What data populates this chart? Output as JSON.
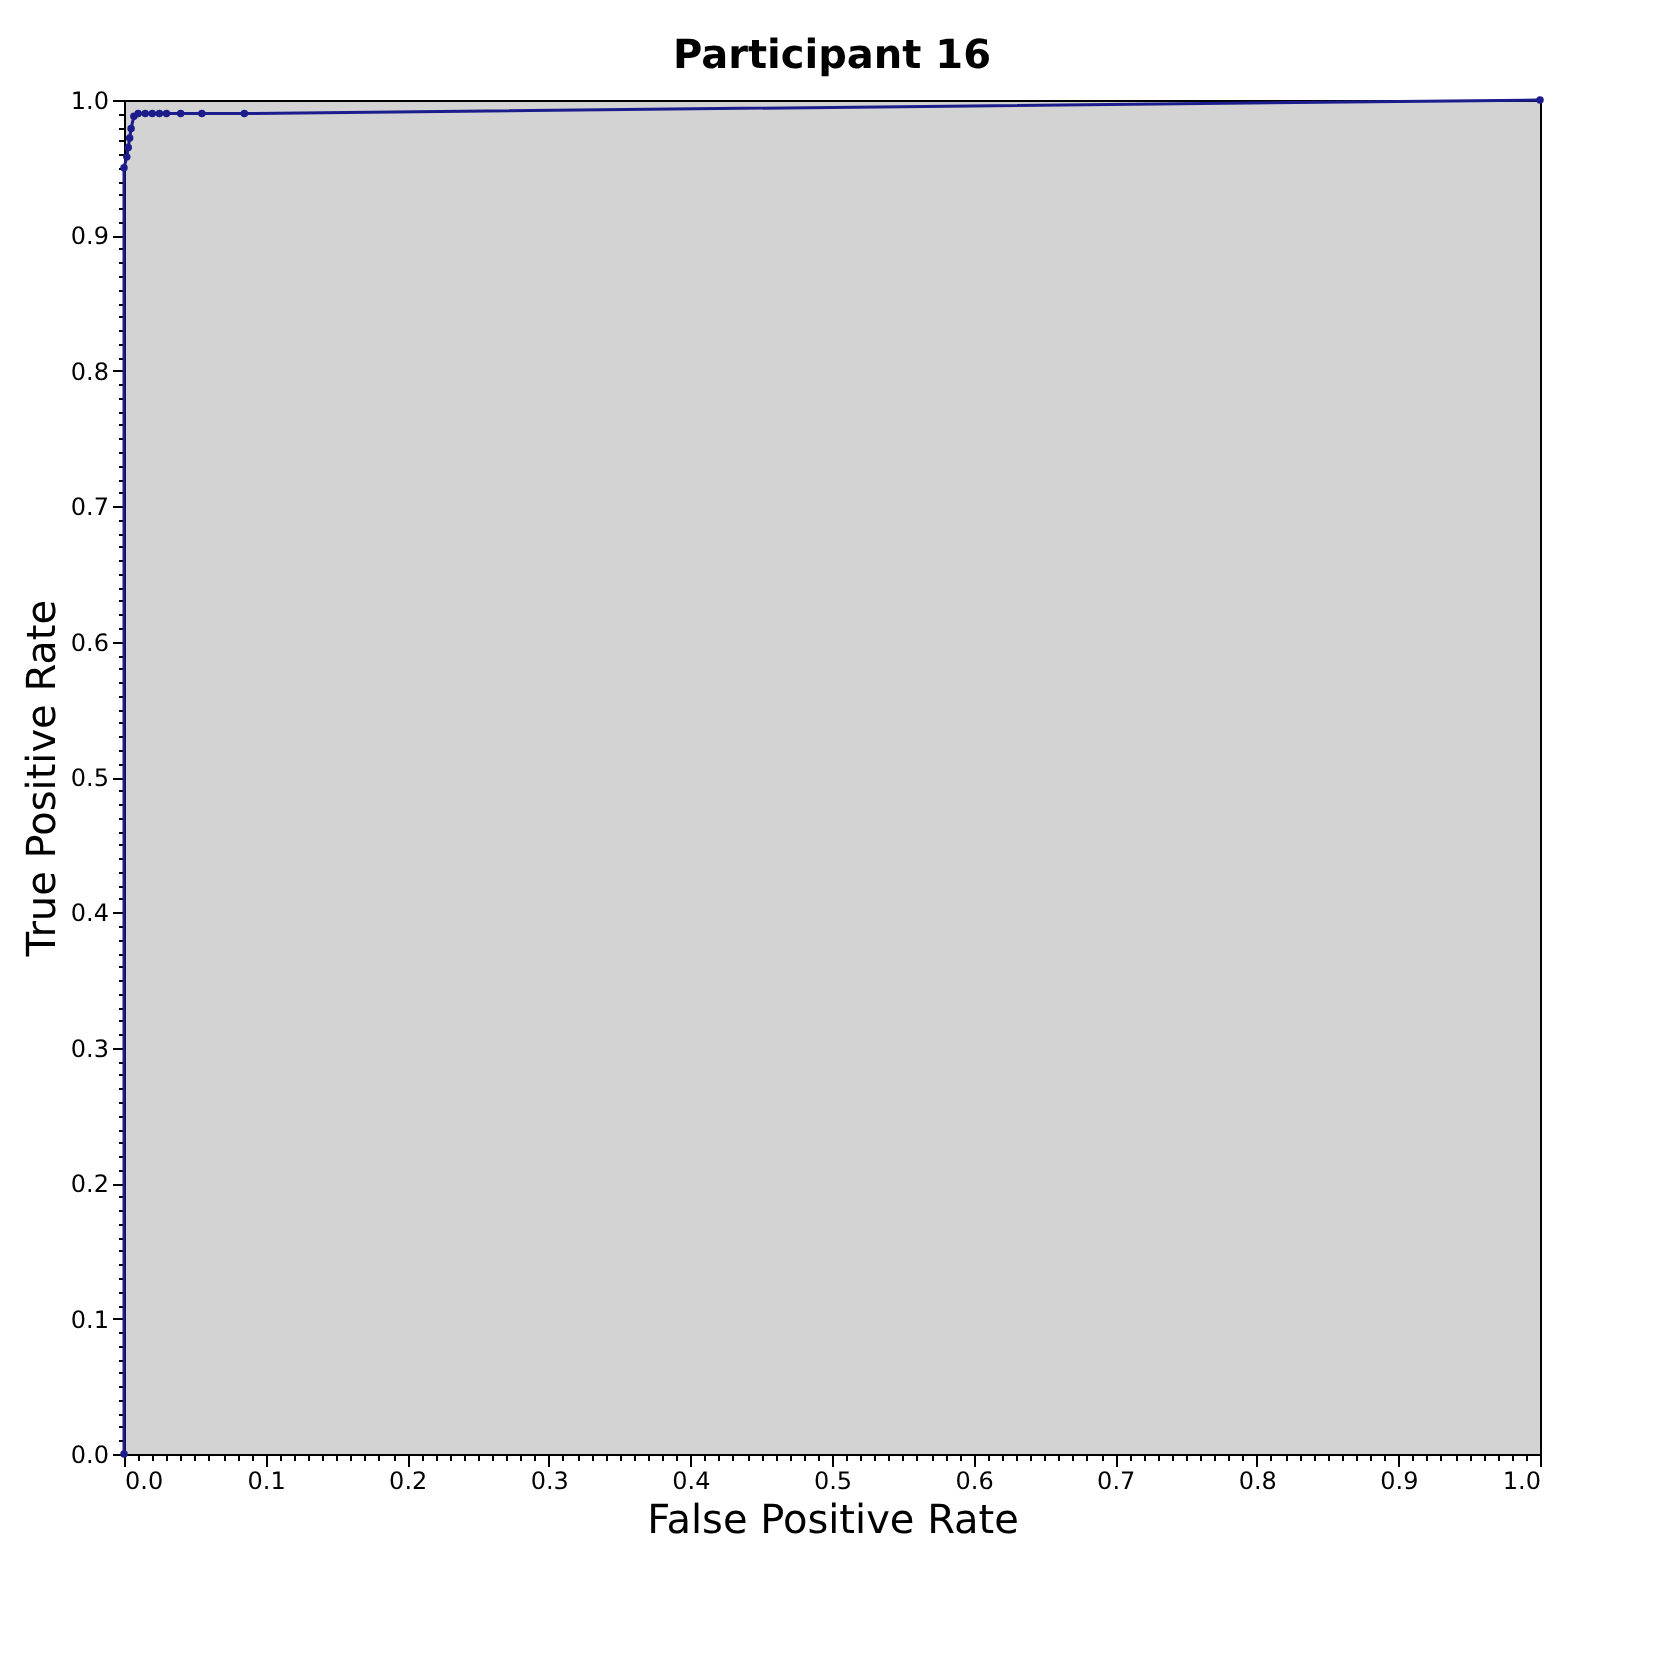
{
  "chart_data": {
    "type": "line",
    "title": "Participant 16",
    "xlabel": "False Positive Rate",
    "ylabel": "True Positive Rate",
    "x": [
      0,
      0,
      0.002,
      0.003,
      0.004,
      0.005,
      0.007,
      0.01,
      0.015,
      0.02,
      0.025,
      0.03,
      0.04,
      0.055,
      0.085,
      1
    ],
    "series": [
      {
        "color": "#1c1c8c",
        "values": [
          0,
          0.95,
          0.958,
          0.965,
          0.972,
          0.979,
          0.988,
          0.99,
          0.99,
          0.99,
          0.99,
          0.99,
          0.99,
          0.99,
          0.99,
          1
        ]
      }
    ],
    "marker": "circle",
    "line_style": "solid",
    "grid": false,
    "legend": false,
    "xlim": [
      0,
      1
    ],
    "ylim": [
      0,
      1
    ],
    "xticks": [
      {
        "value": 0,
        "label": "0.0"
      },
      0.1,
      0.2,
      0.3,
      0.4,
      0.5,
      0.6,
      0.7,
      0.8,
      0.9,
      {
        "value": 1,
        "label": "1.0"
      },
      {
        "value": 0.01,
        "label": null
      },
      {
        "value": 0.02,
        "label": null
      },
      {
        "value": 0.03,
        "label": null
      },
      {
        "value": 0.04,
        "label": null
      },
      {
        "value": 0.05,
        "label": null
      },
      {
        "value": 0.06,
        "label": null
      },
      {
        "value": 0.07,
        "label": null
      },
      {
        "value": 0.08,
        "label": null
      },
      {
        "value": 0.09,
        "label": null
      },
      {
        "value": 0.11,
        "label": null
      },
      {
        "value": 0.12,
        "label": null
      },
      {
        "value": 0.13,
        "label": null
      },
      {
        "value": 0.14,
        "label": null
      },
      {
        "value": 0.15,
        "label": null
      },
      {
        "value": 0.16,
        "label": null
      },
      {
        "value": 0.17,
        "label": null
      },
      {
        "value": 0.18,
        "label": null
      },
      {
        "value": 0.19,
        "label": null
      },
      {
        "value": 0.21,
        "label": null
      },
      {
        "value": 0.22,
        "label": null
      },
      {
        "value": 0.23,
        "label": null
      },
      {
        "value": 0.24,
        "label": null
      },
      {
        "value": 0.25,
        "label": null
      },
      {
        "value": 0.26,
        "label": null
      },
      {
        "value": 0.27,
        "label": null
      },
      {
        "value": 0.28,
        "label": null
      },
      {
        "value": 0.29,
        "label": null
      },
      {
        "value": 0.31,
        "label": null
      },
      {
        "value": 0.32,
        "label": null
      },
      {
        "value": 0.33,
        "label": null
      },
      {
        "value": 0.34,
        "label": null
      },
      {
        "value": 0.35,
        "label": null
      },
      {
        "value": 0.36,
        "label": null
      },
      {
        "value": 0.37,
        "label": null
      },
      {
        "value": 0.38,
        "label": null
      },
      {
        "value": 0.39,
        "label": null
      },
      {
        "value": 0.41,
        "label": null
      },
      {
        "value": 0.42,
        "label": null
      },
      {
        "value": 0.43,
        "label": null
      },
      {
        "value": 0.44,
        "label": null
      },
      {
        "value": 0.45,
        "label": null
      },
      {
        "value": 0.46,
        "label": null
      },
      {
        "value": 0.47,
        "label": null
      },
      {
        "value": 0.48,
        "label": null
      },
      {
        "value": 0.49,
        "label": null
      },
      {
        "value": 0.51,
        "label": null
      },
      {
        "value": 0.52,
        "label": null
      },
      {
        "value": 0.53,
        "label": null
      },
      {
        "value": 0.54,
        "label": null
      },
      {
        "value": 0.55,
        "label": null
      },
      {
        "value": 0.56,
        "label": null
      },
      {
        "value": 0.57,
        "label": null
      },
      {
        "value": 0.58,
        "label": null
      },
      {
        "value": 0.59,
        "label": null
      },
      {
        "value": 0.61,
        "label": null
      },
      {
        "value": 0.62,
        "label": null
      },
      {
        "value": 0.63,
        "label": null
      },
      {
        "value": 0.64,
        "label": null
      },
      {
        "value": 0.65,
        "label": null
      },
      {
        "value": 0.66,
        "label": null
      },
      {
        "value": 0.67,
        "label": null
      },
      {
        "value": 0.68,
        "label": null
      },
      {
        "value": 0.69,
        "label": null
      },
      {
        "value": 0.71,
        "label": null
      },
      {
        "value": 0.72,
        "label": null
      },
      {
        "value": 0.73,
        "label": null
      },
      {
        "value": 0.74,
        "label": null
      },
      {
        "value": 0.75,
        "label": null
      },
      {
        "value": 0.76,
        "label": null
      },
      {
        "value": 0.77,
        "label": null
      },
      {
        "value": 0.78,
        "label": null
      },
      {
        "value": 0.79,
        "label": null
      },
      {
        "value": 0.81,
        "label": null
      },
      {
        "value": 0.82,
        "label": null
      },
      {
        "value": 0.83,
        "label": null
      },
      {
        "value": 0.84,
        "label": null
      },
      {
        "value": 0.85,
        "label": null
      },
      {
        "value": 0.86,
        "label": null
      },
      {
        "value": 0.87,
        "label": null
      },
      {
        "value": 0.88,
        "label": null
      },
      {
        "value": 0.89,
        "label": null
      },
      {
        "value": 0.91,
        "label": null
      },
      {
        "value": 0.92,
        "label": null
      },
      {
        "value": 0.93,
        "label": null
      },
      {
        "value": 0.94,
        "label": null
      },
      {
        "value": 0.95,
        "label": null
      },
      {
        "value": 0.96,
        "label": null
      },
      {
        "value": 0.97,
        "label": null
      },
      {
        "value": 0.98,
        "label": null
      },
      {
        "value": 0.99,
        "label": null
      }
    ],
    "yticks": [
      {
        "value": 0,
        "label": "0.0"
      },
      0.1,
      0.2,
      0.3,
      0.4,
      0.5,
      0.6,
      0.7,
      0.8,
      0.9,
      {
        "value": 1,
        "label": "1.0"
      },
      {
        "value": 0.01,
        "label": null
      },
      {
        "value": 0.02,
        "label": null
      },
      {
        "value": 0.03,
        "label": null
      },
      {
        "value": 0.04,
        "label": null
      },
      {
        "value": 0.05,
        "label": null
      },
      {
        "value": 0.06,
        "label": null
      },
      {
        "value": 0.07,
        "label": null
      },
      {
        "value": 0.08,
        "label": null
      },
      {
        "value": 0.09,
        "label": null
      },
      {
        "value": 0.11,
        "label": null
      },
      {
        "value": 0.12,
        "label": null
      },
      {
        "value": 0.13,
        "label": null
      },
      {
        "value": 0.14,
        "label": null
      },
      {
        "value": 0.15,
        "label": null
      },
      {
        "value": 0.16,
        "label": null
      },
      {
        "value": 0.17,
        "label": null
      },
      {
        "value": 0.18,
        "label": null
      },
      {
        "value": 0.19,
        "label": null
      },
      {
        "value": 0.21,
        "label": null
      },
      {
        "value": 0.22,
        "label": null
      },
      {
        "value": 0.23,
        "label": null
      },
      {
        "value": 0.24,
        "label": null
      },
      {
        "value": 0.25,
        "label": null
      },
      {
        "value": 0.26,
        "label": null
      },
      {
        "value": 0.27,
        "label": null
      },
      {
        "value": 0.28,
        "label": null
      },
      {
        "value": 0.29,
        "label": null
      },
      {
        "value": 0.31,
        "label": null
      },
      {
        "value": 0.32,
        "label": null
      },
      {
        "value": 0.33,
        "label": null
      },
      {
        "value": 0.34,
        "label": null
      },
      {
        "value": 0.35,
        "label": null
      },
      {
        "value": 0.36,
        "label": null
      },
      {
        "value": 0.37,
        "label": null
      },
      {
        "value": 0.38,
        "label": null
      },
      {
        "value": 0.39,
        "label": null
      },
      {
        "value": 0.41,
        "label": null
      },
      {
        "value": 0.42,
        "label": null
      },
      {
        "value": 0.43,
        "label": null
      },
      {
        "value": 0.44,
        "label": null
      },
      {
        "value": 0.45,
        "label": null
      },
      {
        "value": 0.46,
        "label": null
      },
      {
        "value": 0.47,
        "label": null
      },
      {
        "value": 0.48,
        "label": null
      },
      {
        "value": 0.49,
        "label": null
      },
      {
        "value": 0.51,
        "label": null
      },
      {
        "value": 0.52,
        "label": null
      },
      {
        "value": 0.53,
        "label": null
      },
      {
        "value": 0.54,
        "label": null
      },
      {
        "value": 0.55,
        "label": null
      },
      {
        "value": 0.56,
        "label": null
      },
      {
        "value": 0.57,
        "label": null
      },
      {
        "value": 0.58,
        "label": null
      },
      {
        "value": 0.59,
        "label": null
      },
      {
        "value": 0.61,
        "label": null
      },
      {
        "value": 0.62,
        "label": null
      },
      {
        "value": 0.63,
        "label": null
      },
      {
        "value": 0.64,
        "label": null
      },
      {
        "value": 0.65,
        "label": null
      },
      {
        "value": 0.66,
        "label": null
      },
      {
        "value": 0.67,
        "label": null
      },
      {
        "value": 0.68,
        "label": null
      },
      {
        "value": 0.69,
        "label": null
      },
      {
        "value": 0.71,
        "label": null
      },
      {
        "value": 0.72,
        "label": null
      },
      {
        "value": 0.73,
        "label": null
      },
      {
        "value": 0.74,
        "label": null
      },
      {
        "value": 0.75,
        "label": null
      },
      {
        "value": 0.76,
        "label": null
      },
      {
        "value": 0.77,
        "label": null
      },
      {
        "value": 0.78,
        "label": null
      },
      {
        "value": 0.79,
        "label": null
      },
      {
        "value": 0.81,
        "label": null
      },
      {
        "value": 0.82,
        "label": null
      },
      {
        "value": 0.83,
        "label": null
      },
      {
        "value": 0.84,
        "label": null
      },
      {
        "value": 0.85,
        "label": null
      },
      {
        "value": 0.86,
        "label": null
      },
      {
        "value": 0.87,
        "label": null
      },
      {
        "value": 0.88,
        "label": null
      },
      {
        "value": 0.89,
        "label": null
      },
      {
        "value": 0.91,
        "label": null
      },
      {
        "value": 0.92,
        "label": null
      },
      {
        "value": 0.93,
        "label": null
      },
      {
        "value": 0.94,
        "label": null
      },
      {
        "value": 0.95,
        "label": null
      },
      {
        "value": 0.96,
        "label": null
      },
      {
        "value": 0.97,
        "label": null
      },
      {
        "value": 0.98,
        "label": null
      },
      {
        "value": 0.99,
        "label": null
      }
    ]
  }
}
